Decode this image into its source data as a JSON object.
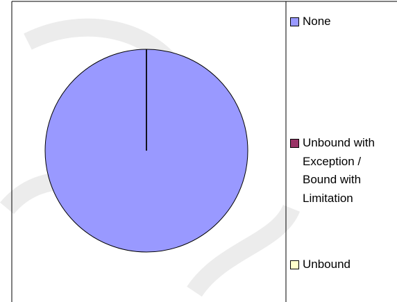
{
  "chart_data": {
    "type": "pie",
    "categories": [
      "None",
      "Unbound with Exception / Bound with Limitation",
      "Unbound"
    ],
    "values": [
      100,
      0,
      0
    ],
    "colors": [
      "#9999ff",
      "#993366",
      "#ffffcc"
    ]
  }
}
